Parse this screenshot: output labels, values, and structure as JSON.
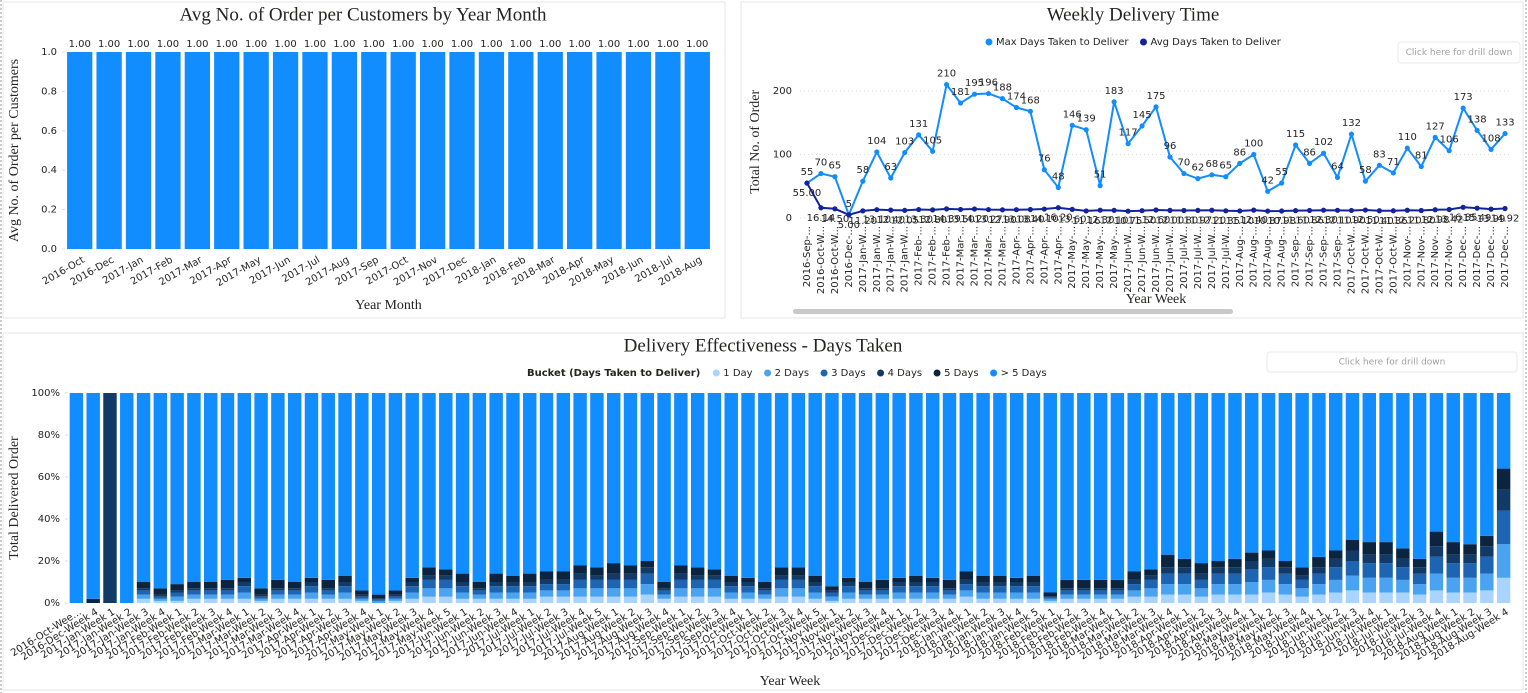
{
  "buttons": [
    "Click here for drill down",
    "Click here for drill down"
  ],
  "chart_data": [
    {
      "type": "bar",
      "title": "Avg No. of Order per Customers by Year Month",
      "x_label": "Year Month",
      "y_label": "Avg No. of Order per Customers",
      "categories": [
        "2016-Oct",
        "2016-Dec",
        "2017-Jan",
        "2017-Feb",
        "2017-Mar",
        "2017-Apr",
        "2017-May",
        "2017-Jun",
        "2017-Jul",
        "2017-Aug",
        "2017-Sep",
        "2017-Oct",
        "2017-Nov",
        "2017-Dec",
        "2018-Jan",
        "2018-Feb",
        "2018-Mar",
        "2018-Apr",
        "2018-May",
        "2018-Jun",
        "2018-Jul",
        "2018-Aug"
      ],
      "values": [
        1,
        1,
        1,
        1,
        1,
        1,
        1,
        1,
        1,
        1,
        1,
        1,
        1,
        1,
        1,
        1,
        1,
        1,
        1,
        1,
        1,
        1
      ],
      "value_labels": [
        "1.00",
        "1.00",
        "1.00",
        "1.00",
        "1.00",
        "1.00",
        "1.00",
        "1.00",
        "1.00",
        "1.00",
        "1.00",
        "1.00",
        "1.00",
        "1.00",
        "1.00",
        "1.00",
        "1.00",
        "1.00",
        "1.00",
        "1.00",
        "1.00",
        "1.00"
      ],
      "color": "#118dff",
      "ylim": [
        0,
        1
      ],
      "yticks": [
        {
          "value": 0,
          "label": "0.0"
        },
        0.2,
        0.4,
        0.6,
        0.8,
        {
          "value": 1,
          "label": "1.0"
        }
      ],
      "grid": false
    },
    {
      "type": "line",
      "title": "Weekly Delivery Time",
      "x_label": "Year Week",
      "y_label": "Total No. of Order",
      "legend": "top",
      "grid": true,
      "categories": [
        "2016-Sep-...",
        "2016-Oct-W...",
        "2016-Oct-W...",
        "2016-Dec-...",
        "2017-Jan-W...",
        "2017-Jan-W...",
        "2017-Jan-W...",
        "2017-Jan-W...",
        "2017-Feb-...",
        "2017-Feb-...",
        "2017-Feb-...",
        "2017-Mar-...",
        "2017-Mar-...",
        "2017-Mar-...",
        "2017-Mar-...",
        "2017-Apr-...",
        "2017-Apr-...",
        "2017-Apr-...",
        "2017-Apr-...",
        "2017-May-...",
        "2017-May-...",
        "2017-May-...",
        "2017-May-...",
        "2017-Jun-W...",
        "2017-Jun-W...",
        "2017-Jun-W...",
        "2017-Jun-W...",
        "2017-Jul-W...",
        "2017-Jul-W...",
        "2017-Jul-W...",
        "2017-Jul-W...",
        "2017-Aug-...",
        "2017-Aug-...",
        "2017-Aug-...",
        "2017-Aug-...",
        "2017-Sep-...",
        "2017-Sep-...",
        "2017-Sep-...",
        "2017-Sep-...",
        "2017-Oct-W...",
        "2017-Oct-W...",
        "2017-Oct-W...",
        "2017-Oct-W...",
        "2017-Nov-...",
        "2017-Nov-...",
        "2017-Nov-...",
        "2017-Nov-...",
        "2017-Dec-...",
        "2017-Dec-...",
        "2017-Dec-...",
        "2017-Dec-..."
      ],
      "series": [
        {
          "name": "Max Days Taken to Deliver",
          "color": "#118dff",
          "values": [
            55,
            70,
            65,
            5,
            58,
            104,
            63,
            103,
            131,
            105,
            210,
            181,
            195,
            196,
            188,
            174,
            168,
            76,
            48,
            146,
            139,
            51,
            183,
            117,
            145,
            175,
            96,
            70,
            62,
            68,
            65,
            86,
            100,
            42,
            55,
            115,
            86,
            102,
            64,
            132,
            58,
            83,
            71,
            110,
            81,
            127,
            106,
            173,
            138,
            108,
            133
          ]
        },
        {
          "name": "Avg Days Taken to Deliver",
          "color": "#12239e",
          "values": [
            55,
            16.14,
            14.5,
            5,
            11.2,
            13.1,
            12.4,
            12.05,
            13.3,
            12.8,
            14.39,
            13.5,
            14.2,
            13.27,
            12.9,
            13.08,
            13.4,
            14.1,
            16.2,
            13.6,
            11.16,
            12.3,
            12.1,
            10.75,
            11.5,
            12.6,
            12,
            11.8,
            11.97,
            12.2,
            11.35,
            11.1,
            12.4,
            10.87,
            10.98,
            11.6,
            11.86,
            12.3,
            12.1,
            11.9,
            12.5,
            11.4,
            11.36,
            12.2,
            11.8,
            12.98,
            13.42,
            16.85,
            15.49,
            13.99,
            14.92
          ],
          "value_labels": [
            "55.00",
            "16.14",
            "14.50",
            "5.00",
            "11.20",
            "13.10",
            "12.40",
            "12.05",
            "13.30",
            "12.80",
            "14.39",
            "13.50",
            "14.20",
            "13.27",
            "12.90",
            "13.08",
            "13.40",
            "14.10",
            "16.20",
            "13.60",
            "11.16",
            "12.30",
            "12.10",
            "10.75",
            "11.50",
            "12.60",
            "12.00",
            "11.80",
            "11.97",
            "12.20",
            "11.35",
            "11.10",
            "12.40",
            "10.87",
            "10.98",
            "11.60",
            "11.86",
            "12.30",
            "12.10",
            "11.90",
            "12.50",
            "11.40",
            "11.36",
            "12.20",
            "11.80",
            "12.98",
            "13.42",
            "16.85",
            "15.49",
            "13.99",
            "14.92"
          ]
        }
      ],
      "ylim": [
        0,
        240
      ],
      "yticks": [
        0,
        100,
        200
      ]
    },
    {
      "type": "stacked_bar",
      "title": "Delivery Effectiveness - Days Taken",
      "x_label": "Year Week",
      "y_label": "Total Delivered Order",
      "legend": "top",
      "legend_title": "Bucket (Days Taken to Deliver)",
      "grid": false,
      "categories": [
        "2016-Oct-Wee...",
        "2016-Dec-Week 4",
        "2017-Jan-Week 1",
        "2017-Jan-Week 2",
        "2017-Jan-Week 3",
        "2017-Jan-Week 4",
        "2017-Feb-Week 1",
        "2017-Feb-Week 2",
        "2017-Feb-Week 3",
        "2017-Feb-Week 4",
        "2017-Mar-Week 1",
        "2017-Mar-Week 2",
        "2017-Mar-Week 3",
        "2017-Mar-Week 4",
        "2017-Apr-Week 1",
        "2017-Apr-Week 2",
        "2017-Apr-Week 3",
        "2017-Apr-Week 4",
        "2017-May-Week 1",
        "2017-May-Week 2",
        "2017-May-Week 3",
        "2017-May-Week 4",
        "2017-May-Week 5",
        "2017-Jun-Week 1",
        "2017-Jun-Week 2",
        "2017-Jun-Week 3",
        "2017-Jun-Week 4",
        "2017-Jul-Week 1",
        "2017-Jul-Week 2",
        "2017-Jul-Week 3",
        "2017-Jul-Week 4",
        "2017-Jul-Week 5",
        "2017-Aug-Week 1",
        "2017-Aug-Week 2",
        "2017-Aug-Week 3",
        "2017-Aug-Week 4",
        "2017-Sep-Week 1",
        "2017-Sep-Week 2",
        "2017-Sep-Week 3",
        "2017-Sep-Week 4",
        "2017-Oct-Week 1",
        "2017-Oct-Week 2",
        "2017-Oct-Week 3",
        "2017-Oct-Week 4",
        "2017-Oct-Week 5",
        "2017-Nov-Week 1",
        "2017-Nov-Week 2",
        "2017-Nov-Week 3",
        "2017-Nov-Week 4",
        "2017-Dec-Week 1",
        "2017-Dec-Week 2",
        "2017-Dec-Week 3",
        "2017-Dec-Week 4",
        "2018-Jan-Week 1",
        "2018-Jan-Week 2",
        "2018-Jan-Week 3",
        "2018-Jan-Week 4",
        "2018-Jan-Week 5",
        "2018-Feb-Week 1",
        "2018-Feb-Week 2",
        "2018-Feb-Week 3",
        "2018-Feb-Week 4",
        "2018-Mar-Week 1",
        "2018-Mar-Week 2",
        "2018-Mar-Week 3",
        "2018-Mar-Week 4",
        "2018-Apr-Week 1",
        "2018-Apr-Week 2",
        "2018-Apr-Week 3",
        "2018-Apr-Week 4",
        "2018-May-Week 1",
        "2018-May-Week 2",
        "2018-May-Week 3",
        "2018-May-Week 4",
        "2018-Jun-Week 1",
        "2018-Jun-Week 2",
        "2018-Jun-Week 3",
        "2018-Jun-Week 4",
        "2018-Jul-Week 1",
        "2018-Jul-Week 2",
        "2018-Jul-Week 3",
        "2018-Jul-Week 4",
        "2018-Aug-Week 1",
        "2018-Aug-Week 2",
        "2018-Aug-Week 3",
        "2018-Aug-Week 4"
      ],
      "series": [
        {
          "name": "1 Day",
          "color": "#a8d4ff",
          "values": [
            0,
            0,
            0,
            0,
            2,
            1,
            1,
            2,
            2,
            2,
            2,
            1,
            2,
            2,
            2,
            2,
            2,
            1,
            0,
            1,
            2,
            3,
            3,
            2,
            2,
            2,
            2,
            2,
            3,
            3,
            3,
            3,
            3,
            3,
            4,
            2,
            3,
            3,
            3,
            2,
            2,
            2,
            3,
            3,
            2,
            1,
            2,
            2,
            2,
            2,
            2,
            2,
            2,
            3,
            2,
            2,
            2,
            2,
            1,
            2,
            2,
            2,
            2,
            3,
            3,
            4,
            4,
            3,
            4,
            4,
            4,
            5,
            4,
            3,
            4,
            5,
            6,
            5,
            5,
            5,
            4,
            6,
            5,
            5,
            6,
            12
          ]
        },
        {
          "name": "2 Days",
          "color": "#4aa3f0",
          "values": [
            0,
            0,
            0,
            0,
            2,
            1,
            2,
            2,
            2,
            2,
            3,
            1,
            2,
            2,
            3,
            2,
            3,
            1,
            1,
            1,
            3,
            4,
            4,
            3,
            2,
            3,
            3,
            3,
            3,
            3,
            4,
            4,
            4,
            4,
            5,
            2,
            4,
            4,
            4,
            3,
            3,
            2,
            4,
            4,
            3,
            2,
            3,
            2,
            2,
            3,
            3,
            3,
            2,
            3,
            3,
            3,
            3,
            3,
            1,
            2,
            2,
            2,
            2,
            3,
            4,
            5,
            5,
            4,
            5,
            5,
            6,
            6,
            5,
            4,
            5,
            6,
            7,
            7,
            7,
            6,
            5,
            8,
            7,
            7,
            8,
            16
          ]
        },
        {
          "name": "3 Days",
          "color": "#1d64b3",
          "values": [
            0,
            0,
            0,
            0,
            2,
            1,
            2,
            2,
            2,
            2,
            3,
            1,
            2,
            2,
            3,
            2,
            3,
            1,
            1,
            1,
            3,
            4,
            4,
            3,
            2,
            3,
            3,
            3,
            3,
            3,
            4,
            4,
            4,
            4,
            5,
            2,
            4,
            4,
            4,
            3,
            3,
            2,
            4,
            4,
            3,
            2,
            3,
            2,
            2,
            3,
            3,
            3,
            2,
            3,
            3,
            3,
            3,
            3,
            1,
            2,
            2,
            2,
            2,
            3,
            4,
            5,
            5,
            4,
            5,
            5,
            6,
            6,
            5,
            4,
            5,
            6,
            7,
            7,
            7,
            6,
            5,
            8,
            7,
            7,
            8,
            16
          ]
        },
        {
          "name": "4 Days",
          "color": "#123a66",
          "values": [
            0,
            0,
            100,
            0,
            1,
            1,
            1,
            1,
            1,
            1,
            2,
            1,
            1,
            1,
            2,
            1,
            2,
            1,
            0,
            1,
            2,
            2,
            2,
            2,
            1,
            2,
            2,
            2,
            2,
            2,
            3,
            2,
            3,
            3,
            3,
            1,
            3,
            2,
            2,
            2,
            2,
            1,
            2,
            2,
            2,
            1,
            2,
            1,
            1,
            2,
            2,
            2,
            1,
            2,
            2,
            2,
            2,
            2,
            0,
            1,
            1,
            1,
            1,
            2,
            2,
            3,
            3,
            3,
            3,
            3,
            4,
            4,
            3,
            2,
            3,
            4,
            5,
            4,
            4,
            4,
            3,
            5,
            4,
            4,
            5,
            10
          ]
        },
        {
          "name": "5 Days",
          "color": "#0b2540",
          "values": [
            0,
            2,
            0,
            0,
            3,
            3,
            3,
            3,
            3,
            4,
            2,
            3,
            4,
            3,
            2,
            4,
            3,
            2,
            2,
            2,
            2,
            4,
            3,
            4,
            3,
            4,
            3,
            4,
            4,
            4,
            4,
            4,
            5,
            4,
            3,
            3,
            4,
            4,
            3,
            3,
            2,
            3,
            4,
            4,
            3,
            2,
            2,
            3,
            4,
            2,
            3,
            2,
            4,
            4,
            3,
            3,
            2,
            3,
            2,
            4,
            4,
            4,
            4,
            4,
            3,
            6,
            4,
            5,
            3,
            4,
            4,
            4,
            3,
            4,
            5,
            4,
            5,
            6,
            6,
            5,
            4,
            7,
            6,
            5,
            5,
            10
          ]
        },
        {
          "name": "> 5 Days",
          "color": "#118dff",
          "values": [
            100,
            98,
            0,
            100,
            90,
            93,
            91,
            90,
            90,
            89,
            88,
            93,
            89,
            90,
            88,
            89,
            87,
            94,
            96,
            94,
            88,
            83,
            84,
            86,
            90,
            86,
            87,
            86,
            85,
            85,
            82,
            83,
            81,
            82,
            80,
            90,
            82,
            83,
            84,
            87,
            88,
            90,
            83,
            83,
            87,
            92,
            88,
            90,
            89,
            88,
            87,
            88,
            89,
            85,
            87,
            87,
            88,
            87,
            95,
            89,
            89,
            89,
            89,
            85,
            84,
            77,
            79,
            81,
            80,
            79,
            76,
            75,
            80,
            83,
            78,
            75,
            70,
            71,
            71,
            74,
            79,
            66,
            71,
            72,
            68,
            36
          ]
        }
      ],
      "ylim": [
        0,
        100
      ],
      "yticks": [
        {
          "value": 0,
          "label": "0%"
        },
        {
          "value": 20,
          "label": "20%"
        },
        {
          "value": 40,
          "label": "40%"
        },
        {
          "value": 60,
          "label": "60%"
        },
        {
          "value": 80,
          "label": "80%"
        },
        {
          "value": 100,
          "label": "100%"
        }
      ]
    }
  ]
}
